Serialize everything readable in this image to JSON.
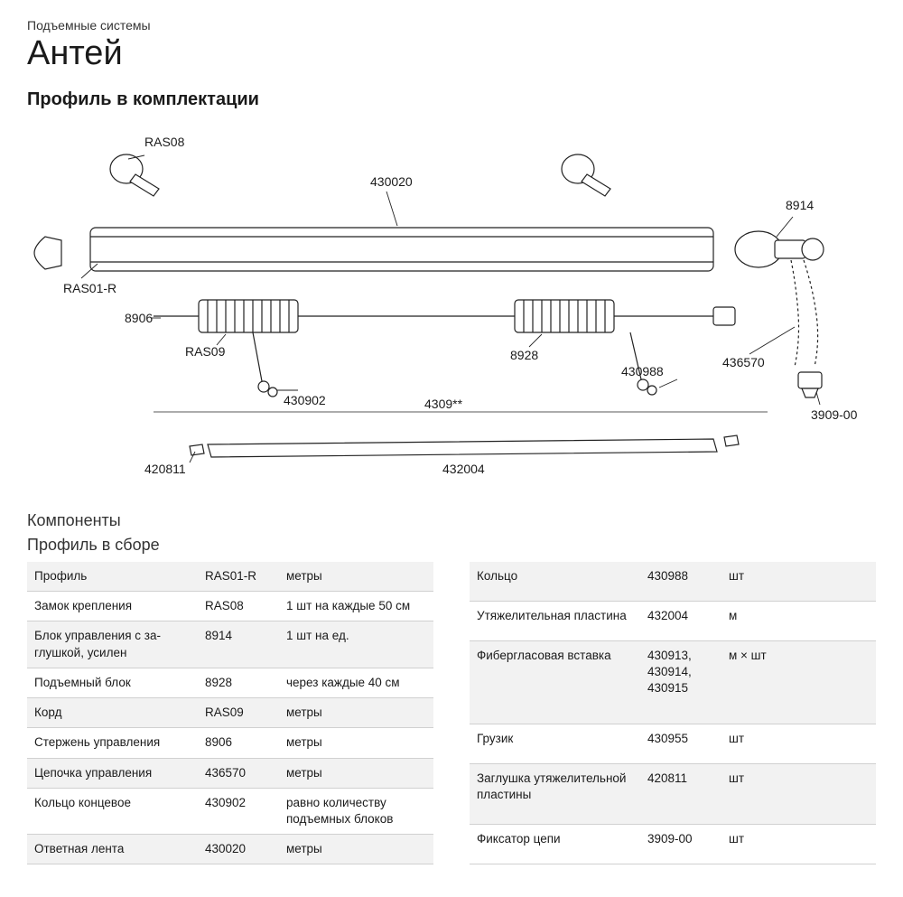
{
  "header": {
    "subtitle": "Подъемные системы",
    "title": "Антей",
    "section": "Профиль в комплектации"
  },
  "diagram": {
    "labels": {
      "ras08": "RAS08",
      "p430020": "430020",
      "p8914": "8914",
      "ras01r": "RAS01-R",
      "p8906": "8906",
      "ras09": "RAS09",
      "p8928": "8928",
      "p430902": "430902",
      "p430988": "430988",
      "p436570": "436570",
      "p4309": "4309**",
      "p3909": "3909-00",
      "p420811": "420811",
      "p432004": "432004"
    }
  },
  "components": {
    "heading": "Компоненты",
    "sub": "Профиль в сборе",
    "left": [
      {
        "name": "Профиль",
        "code": "RAS01-R",
        "unit": "метры",
        "shade": true
      },
      {
        "name": "Замок крепления",
        "code": "RAS08",
        "unit": "1 шт на каждые 50 см",
        "shade": false
      },
      {
        "name": "Блок управления с за­глушкой, усилен",
        "code": "8914",
        "unit": "1 шт на ед.",
        "shade": true
      },
      {
        "name": "Подъемный блок",
        "code": "8928",
        "unit": "через каждые 40 см",
        "shade": false
      },
      {
        "name": "Корд",
        "code": "RAS09",
        "unit": "метры",
        "shade": true
      },
      {
        "name": "Стержень управления",
        "code": "8906",
        "unit": "метры",
        "shade": false
      },
      {
        "name": "Цепочка управления",
        "code": "436570",
        "unit": "метры",
        "shade": true
      },
      {
        "name": "Кольцо концевое",
        "code": "430902",
        "unit": "равно количеству подъем­ных блоков",
        "shade": false
      },
      {
        "name": "Ответная лента",
        "code": "430020",
        "unit": "метры",
        "shade": true
      }
    ],
    "right": [
      {
        "name": "Кольцо",
        "code": "430988",
        "unit": "шт",
        "shade": true
      },
      {
        "name": "Утяжелительная пластина",
        "code": "432004",
        "unit": "м",
        "shade": false
      },
      {
        "name": "Фибергласовая вставка",
        "code": "430913, 430914, 430915",
        "unit": "м × шт",
        "shade": true
      },
      {
        "name": "Грузик",
        "code": "430955",
        "unit": "шт",
        "shade": false
      },
      {
        "name": "Заглушка утяжелитель­ной пластины",
        "code": "420811",
        "unit": "шт",
        "shade": true
      },
      {
        "name": "Фиксатор цепи",
        "code": "3909-00",
        "unit": "шт",
        "shade": false
      }
    ]
  }
}
